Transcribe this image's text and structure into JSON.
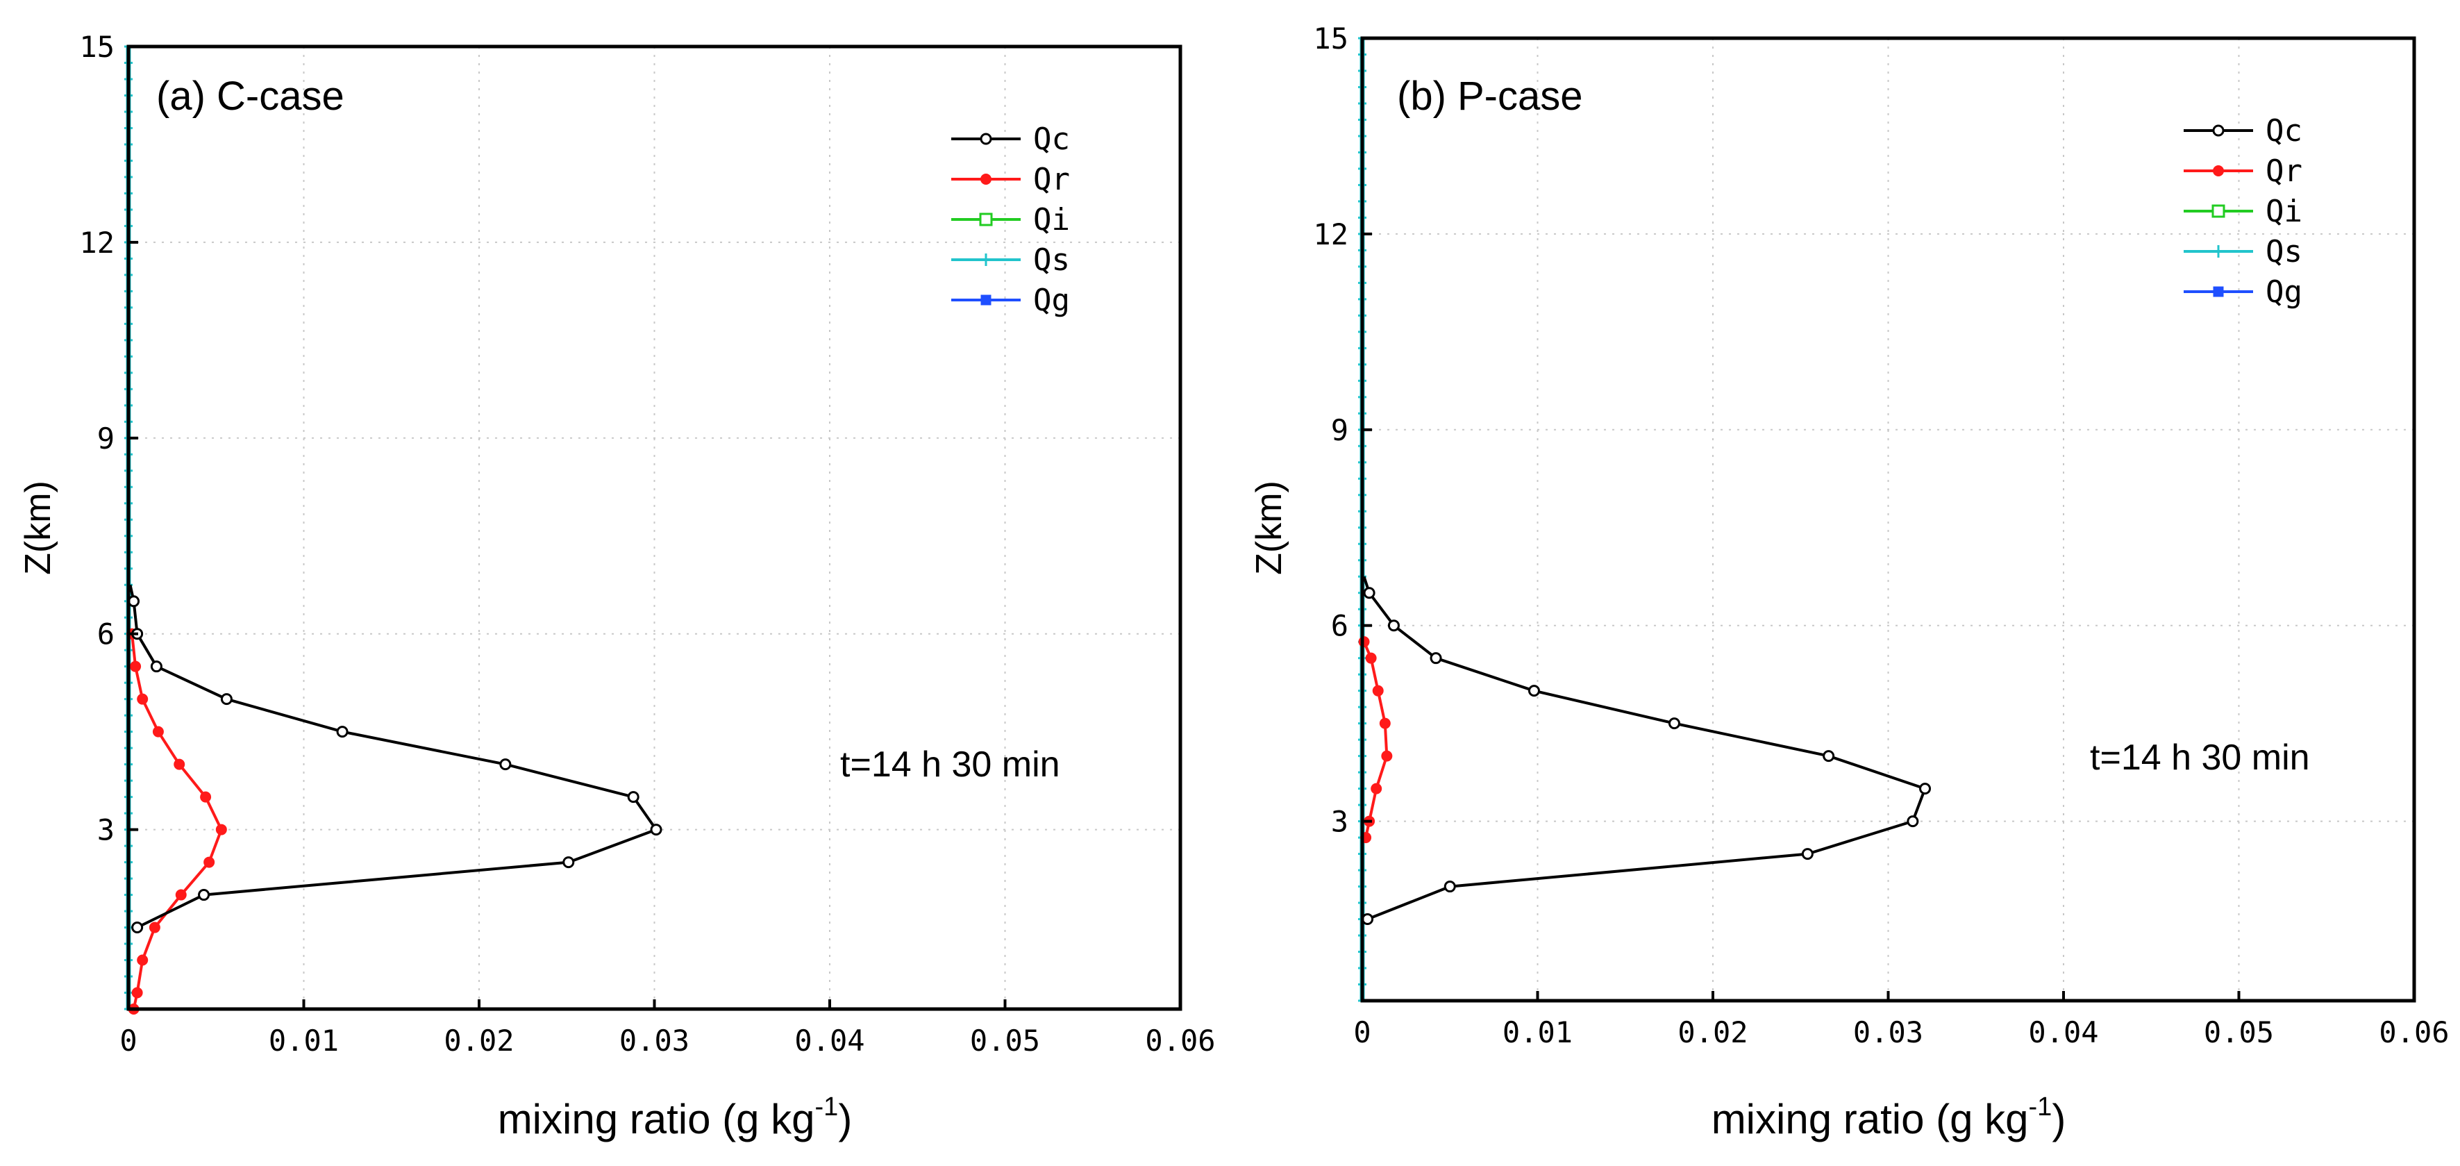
{
  "colors": {
    "Qc": "#000000",
    "Qr": "#ff1a1a",
    "Qi": "#22cc22",
    "Qs": "#22c4cc",
    "Qg": "#1f4fff"
  },
  "chart_data": [
    {
      "type": "line",
      "title": "(a) C-case",
      "annotation": "t=14 h 30 min",
      "xlabel_main": "mixing ratio (g kg",
      "xlabel_sup": "-1",
      "xlabel_end": ")",
      "ylabel": "Z(km)",
      "xlim": [
        0,
        0.06
      ],
      "ylim": [
        0.25,
        15
      ],
      "xticks": [
        "0",
        "0.01",
        "0.02",
        "0.03",
        "0.04",
        "0.05",
        "0.06"
      ],
      "yticks": [
        "3",
        "6",
        "9",
        "12",
        "15"
      ],
      "legend_position": "top-right",
      "series": [
        {
          "name": "Qc",
          "x": [
            0.0001,
            0.0003,
            0.0005,
            0.0016,
            0.0056,
            0.0122,
            0.0215,
            0.0288,
            0.0301,
            0.0251,
            0.0043,
            0.0005
          ],
          "y": [
            6.75,
            6.5,
            6.0,
            5.5,
            5.0,
            4.5,
            4.0,
            3.5,
            3.0,
            2.5,
            2.0,
            1.5
          ]
        },
        {
          "name": "Qr",
          "x": [
            0.0002,
            0.0004,
            0.0008,
            0.0017,
            0.0029,
            0.0044,
            0.0053,
            0.0046,
            0.003,
            0.0015,
            0.0008,
            0.0005,
            0.0003
          ],
          "y": [
            6.0,
            5.5,
            5.0,
            4.5,
            4.0,
            3.5,
            3.0,
            2.5,
            2.0,
            1.5,
            1.0,
            0.5,
            0.25
          ]
        },
        {
          "name": "Qi",
          "x": [
            0,
            0
          ],
          "y": [
            0.25,
            15
          ]
        },
        {
          "name": "Qs",
          "x": [
            0,
            0
          ],
          "y": [
            0.25,
            15
          ]
        },
        {
          "name": "Qg",
          "x": [
            0,
            0
          ],
          "y": [
            0.25,
            15
          ]
        }
      ]
    },
    {
      "type": "line",
      "title": "(b) P-case",
      "annotation": "t=14 h 30 min",
      "xlabel_main": "mixing ratio (g kg",
      "xlabel_sup": "-1",
      "xlabel_end": ")",
      "ylabel": "Z(km)",
      "xlim": [
        0,
        0.06
      ],
      "ylim": [
        0.25,
        15
      ],
      "xticks": [
        "0",
        "0.01",
        "0.02",
        "0.03",
        "0.04",
        "0.05",
        "0.06"
      ],
      "yticks": [
        "3",
        "6",
        "9",
        "12",
        "15"
      ],
      "legend_position": "top-right",
      "series": [
        {
          "name": "Qc",
          "x": [
            0.0001,
            0.0004,
            0.0018,
            0.0042,
            0.0098,
            0.0178,
            0.0266,
            0.0321,
            0.0314,
            0.0254,
            0.005,
            0.0003
          ],
          "y": [
            6.75,
            6.5,
            6.0,
            5.5,
            5.0,
            4.5,
            4.0,
            3.5,
            3.0,
            2.5,
            2.0,
            1.5
          ]
        },
        {
          "name": "Qr",
          "x": [
            0.0001,
            0.0005,
            0.0009,
            0.0013,
            0.0014,
            0.0008,
            0.0004,
            0.0002
          ],
          "y": [
            5.75,
            5.5,
            5.0,
            4.5,
            4.0,
            3.5,
            3.0,
            2.75
          ]
        },
        {
          "name": "Qi",
          "x": [
            0,
            0
          ],
          "y": [
            0.25,
            15
          ]
        },
        {
          "name": "Qs",
          "x": [
            0,
            0
          ],
          "y": [
            0.25,
            15
          ]
        },
        {
          "name": "Qg",
          "x": [
            0,
            0
          ],
          "y": [
            0.25,
            15
          ]
        }
      ]
    }
  ]
}
